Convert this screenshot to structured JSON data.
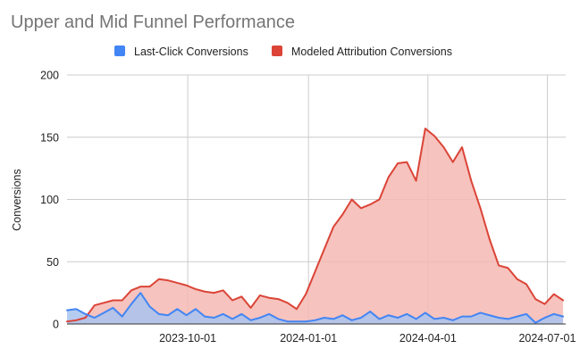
{
  "chart_data": {
    "type": "area",
    "title": "Upper and Mid Funnel Performance",
    "xlabel": "",
    "ylabel": "Conversions",
    "ylim": [
      0,
      200
    ],
    "yticks": [
      0,
      50,
      100,
      150,
      200
    ],
    "x_type": "date",
    "xlim": [
      "2023-07-01",
      "2024-07-15"
    ],
    "xticks": [
      "2023-10-01",
      "2024-01-01",
      "2024-04-01",
      "2024-07-01"
    ],
    "grid": true,
    "legend_position": "top",
    "x": [
      "2023-07-01",
      "2023-07-08",
      "2023-07-15",
      "2023-07-22",
      "2023-07-29",
      "2023-08-05",
      "2023-08-12",
      "2023-08-19",
      "2023-08-26",
      "2023-09-02",
      "2023-09-09",
      "2023-09-16",
      "2023-09-23",
      "2023-09-30",
      "2023-10-07",
      "2023-10-14",
      "2023-10-21",
      "2023-10-28",
      "2023-11-04",
      "2023-11-11",
      "2023-11-18",
      "2023-11-25",
      "2023-12-02",
      "2023-12-09",
      "2023-12-16",
      "2023-12-23",
      "2023-12-30",
      "2024-01-06",
      "2024-01-13",
      "2024-01-20",
      "2024-01-27",
      "2024-02-03",
      "2024-02-10",
      "2024-02-17",
      "2024-02-24",
      "2024-03-02",
      "2024-03-09",
      "2024-03-16",
      "2024-03-23",
      "2024-03-30",
      "2024-04-06",
      "2024-04-13",
      "2024-04-20",
      "2024-04-27",
      "2024-05-04",
      "2024-05-11",
      "2024-05-18",
      "2024-05-25",
      "2024-06-01",
      "2024-06-08",
      "2024-06-15",
      "2024-06-22",
      "2024-06-29",
      "2024-07-06",
      "2024-07-13"
    ],
    "series": [
      {
        "name": "Modeled Attribution Conversions",
        "color": "#db4437",
        "fill": "#f4b9b3",
        "values": [
          2,
          3,
          5,
          15,
          17,
          19,
          19,
          27,
          30,
          30,
          36,
          35,
          33,
          31,
          28,
          26,
          25,
          27,
          19,
          22,
          13,
          23,
          21,
          20,
          17,
          12,
          24,
          42,
          60,
          78,
          88,
          100,
          93,
          96,
          100,
          118,
          129,
          130,
          115,
          157,
          151,
          142,
          130,
          142,
          115,
          93,
          68,
          47,
          45,
          36,
          32,
          20,
          16,
          24,
          19
        ]
      },
      {
        "name": "Last-Click Conversions",
        "color": "#4285f4",
        "fill": "#a8c3ee",
        "values": [
          11,
          12,
          8,
          5,
          9,
          13,
          6,
          16,
          25,
          14,
          8,
          7,
          12,
          7,
          12,
          6,
          5,
          8,
          4,
          8,
          3,
          5,
          8,
          4,
          2,
          2,
          2,
          3,
          5,
          4,
          7,
          3,
          5,
          10,
          4,
          7,
          5,
          8,
          4,
          9,
          4,
          5,
          3,
          6,
          6,
          9,
          7,
          5,
          4,
          6,
          8,
          1,
          5,
          8,
          6
        ]
      }
    ]
  }
}
